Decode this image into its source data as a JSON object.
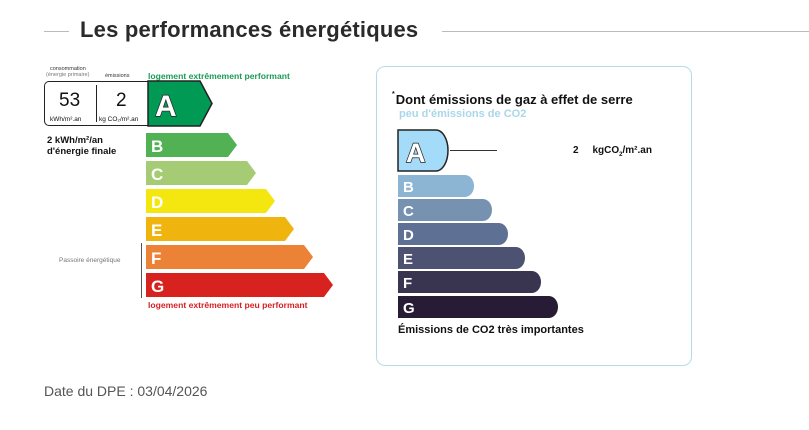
{
  "header": {
    "title": "Les performances énergétiques"
  },
  "dpe": {
    "consumption_label": "consommation",
    "consumption_sub": "(énergie primaire)",
    "emissions_label": "émissions",
    "consumption_value": "53",
    "consumption_unit": "kWh/m².an",
    "emissions_value": "2",
    "emissions_unit": "kg CO₂/m².an",
    "best_caption": "logement extrêmement performant",
    "worst_caption": "logement extrêmement peu performant",
    "final_energy_line1": "2 kWh/m²/an",
    "final_energy_line2": "d'énergie finale",
    "passoire_label": "Passoire énergétique",
    "current_class": "A",
    "classes": [
      {
        "letter": "A",
        "color": "#009a55"
      },
      {
        "letter": "B",
        "color": "#52b153"
      },
      {
        "letter": "C",
        "color": "#a5cc74"
      },
      {
        "letter": "D",
        "color": "#f4e70f"
      },
      {
        "letter": "E",
        "color": "#f0b40f"
      },
      {
        "letter": "F",
        "color": "#eb8235"
      },
      {
        "letter": "G",
        "color": "#d7221f"
      }
    ]
  },
  "ges": {
    "title_mark": "*",
    "title": "Dont émissions de gaz à effet de serre",
    "subtitle": "peu d'émissions de CO2",
    "value": "2",
    "unit_prefix": "kgCO",
    "unit_sub": "2",
    "unit_suffix": "/m².an",
    "bottom_caption": "Émissions de CO2 très importantes",
    "current_class": "A",
    "classes": [
      {
        "letter": "A",
        "color": "#a4dbf8"
      },
      {
        "letter": "B",
        "color": "#8cb4d3"
      },
      {
        "letter": "C",
        "color": "#7792b1"
      },
      {
        "letter": "D",
        "color": "#5f7095"
      },
      {
        "letter": "E",
        "color": "#4d5272"
      },
      {
        "letter": "F",
        "color": "#393551"
      },
      {
        "letter": "G",
        "color": "#281b35"
      }
    ]
  },
  "footer": {
    "date": "Date du DPE : 03/04/2026"
  }
}
